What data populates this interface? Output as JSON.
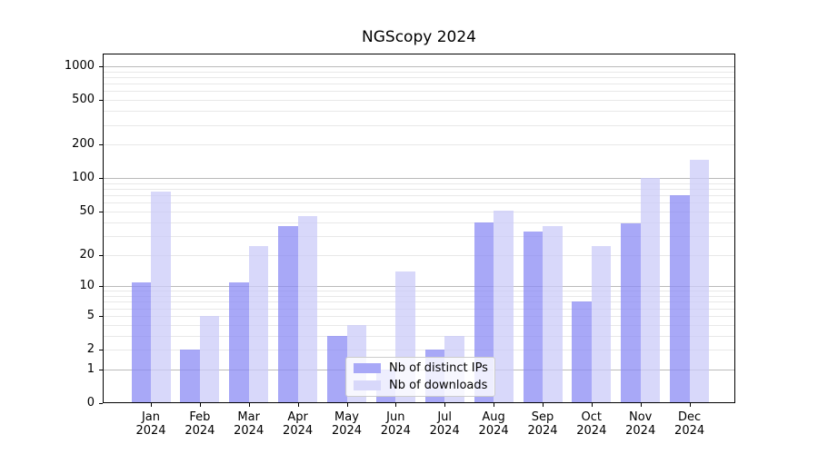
{
  "title": "NGScopy 2024",
  "chart_data": {
    "type": "bar",
    "title": "NGScopy 2024",
    "months": [
      "Jan",
      "Feb",
      "Mar",
      "Apr",
      "May",
      "Jun",
      "Jul",
      "Aug",
      "Sep",
      "Oct",
      "Nov",
      "Dec"
    ],
    "year": "2024",
    "series": [
      {
        "name": "Nb of distinct IPs",
        "color": "#a8a8f7",
        "bar_color": "rgba(139,139,244,0.75)",
        "values": [
          11,
          2,
          11,
          37,
          3,
          1,
          2,
          40,
          33,
          7,
          39,
          70
        ]
      },
      {
        "name": "Nb of downloads",
        "color": "#d8d8fa",
        "bar_color": "rgba(203,203,248,0.75)",
        "values": [
          75,
          5,
          24,
          45,
          4,
          14,
          3,
          51,
          37,
          24,
          100,
          145
        ]
      }
    ],
    "y_ticks": [
      0,
      1,
      2,
      5,
      10,
      20,
      50,
      100,
      200,
      500,
      1000
    ],
    "y_minor_gridlines": [
      3,
      4,
      6,
      7,
      8,
      9,
      30,
      40,
      60,
      70,
      80,
      90,
      300,
      400,
      600,
      700,
      800,
      900
    ],
    "y_scale": "log1p",
    "ylim": [
      0,
      1300
    ],
    "xlabel": "",
    "ylabel": "",
    "grid": "on",
    "legend_position": "lower-center",
    "axis_color": "#000000",
    "grid_major_color": "#bababa",
    "grid_minor_color": "#e8e8e8",
    "background_color": "#ffffff"
  }
}
